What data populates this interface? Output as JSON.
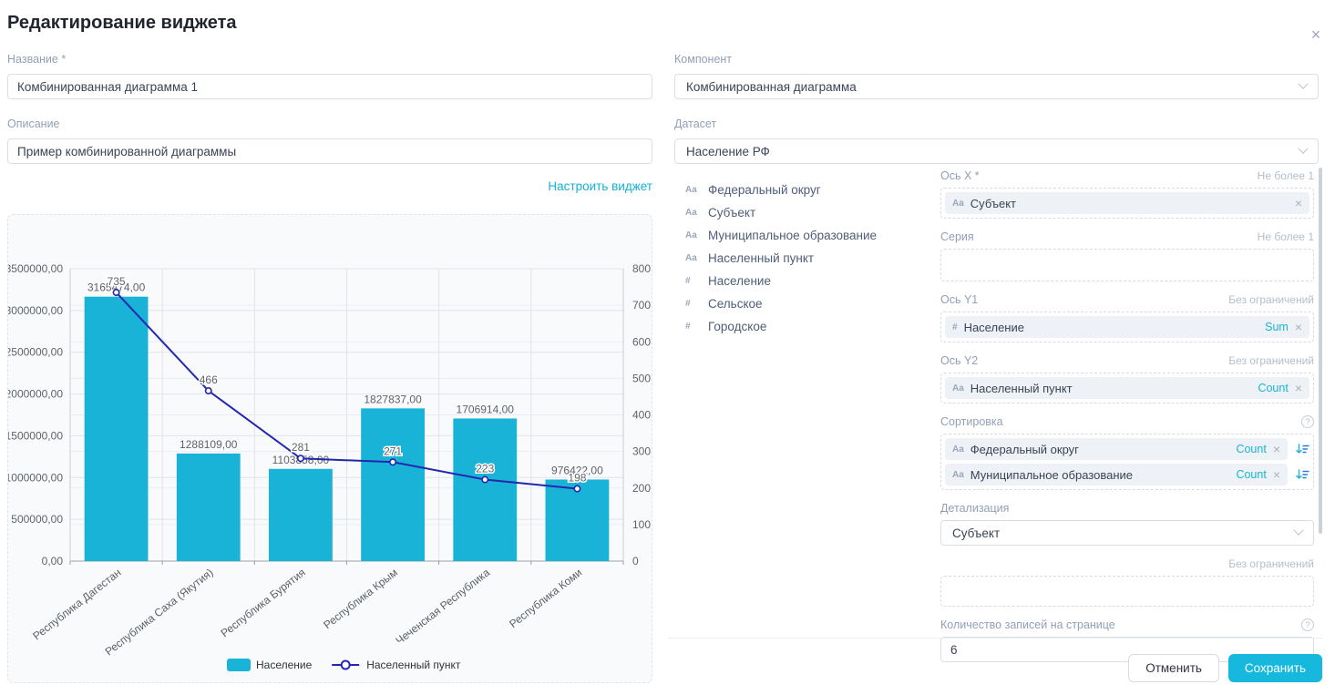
{
  "dialog": {
    "title": "Редактирование виджета",
    "close_icon": "×"
  },
  "left": {
    "name_label": "Название *",
    "name_value": "Комбинированная диаграмма 1",
    "description_label": "Описание",
    "description_value": "Пример комбинированной диаграммы",
    "configure_link": "Настроить виджет"
  },
  "right": {
    "component_label": "Компонент",
    "component_value": "Комбинированная диаграмма",
    "dataset_label": "Датасет",
    "dataset_value": "Население РФ",
    "fields": [
      {
        "type": "Aa",
        "name": "Федеральный округ"
      },
      {
        "type": "Aa",
        "name": "Субъект"
      },
      {
        "type": "Aa",
        "name": "Муниципальное образование"
      },
      {
        "type": "Aa",
        "name": "Населенный пункт"
      },
      {
        "type": "#",
        "name": "Население"
      },
      {
        "type": "#",
        "name": "Сельское"
      },
      {
        "type": "#",
        "name": "Городское"
      }
    ],
    "config": {
      "x_axis": {
        "label": "Ось X *",
        "hint": "Не более 1",
        "chips": [
          {
            "type": "Aa",
            "name": "Субъект"
          }
        ]
      },
      "series": {
        "label": "Серия",
        "hint": "Не более 1",
        "chips": []
      },
      "y1": {
        "label": "Ось Y1",
        "hint": "Без ограничений",
        "chips": [
          {
            "type": "#",
            "name": "Население",
            "agg": "Sum"
          }
        ]
      },
      "y2": {
        "label": "Ось Y2",
        "hint": "Без ограничений",
        "chips": [
          {
            "type": "Aa",
            "name": "Населенный пункт",
            "agg": "Count"
          }
        ]
      },
      "sorting": {
        "label": "Сортировка",
        "help_icon": "?",
        "chips": [
          {
            "type": "Aa",
            "name": "Федеральный округ",
            "agg": "Count"
          },
          {
            "type": "Aa",
            "name": "Муниципальное образование",
            "agg": "Count"
          }
        ]
      },
      "detail": {
        "label": "Детализация",
        "value": "Субъект"
      },
      "limit": {
        "hint": "Без ограничений",
        "chips": []
      },
      "page_size": {
        "label": "Количество записей на странице",
        "help_icon": "?",
        "value": "6"
      }
    },
    "buttons": {
      "cancel": "Отменить",
      "save": "Сохранить"
    }
  },
  "chart_data": {
    "type": "combo",
    "categories": [
      "Республика Дагестан",
      "Республика Саха (Якутия)",
      "Республика Бурятия",
      "Республика Крым",
      "Чеченская Республика",
      "Республика Коми"
    ],
    "series": [
      {
        "name": "Население",
        "type": "bar",
        "axis": "left",
        "color": "#1ab3d8",
        "values": [
          3165474,
          1288109,
          1103858,
          1827837,
          1706914,
          976422
        ]
      },
      {
        "name": "Населенный пункт",
        "type": "line",
        "axis": "right",
        "color": "#2327ad",
        "values": [
          735,
          466,
          281,
          271,
          223,
          198
        ]
      }
    ],
    "y_left": {
      "min": 0,
      "max": 3500000,
      "step": 500000,
      "decimal_suffix": ",00"
    },
    "y_right": {
      "min": 0,
      "max": 800,
      "step": 100
    },
    "legend_position": "bottom",
    "grid": true
  },
  "colors": {
    "accent": "#19b5d2",
    "bar": "#1ab3d8",
    "line": "#2327ad",
    "save_button": "#17b8dd",
    "grid_line": "#e0e4ea",
    "axis_line": "#9aa0a8",
    "tick_text": "#5f6368"
  }
}
